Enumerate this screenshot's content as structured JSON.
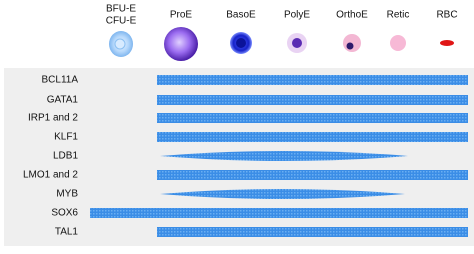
{
  "stages": [
    [
      "BFU-E",
      "CFU-E"
    ],
    [
      "ProE"
    ],
    [
      "BasoE"
    ],
    [
      "PolyE"
    ],
    [
      "OrthoE"
    ],
    [
      "Retic"
    ],
    [
      "RBC"
    ]
  ],
  "genes": [
    "BCL11A",
    "GATA1",
    "IRP1 and 2",
    "KLF1",
    "LDB1",
    "LMO1 and 2",
    "MYB",
    "SOX6",
    "TAL1"
  ]
}
